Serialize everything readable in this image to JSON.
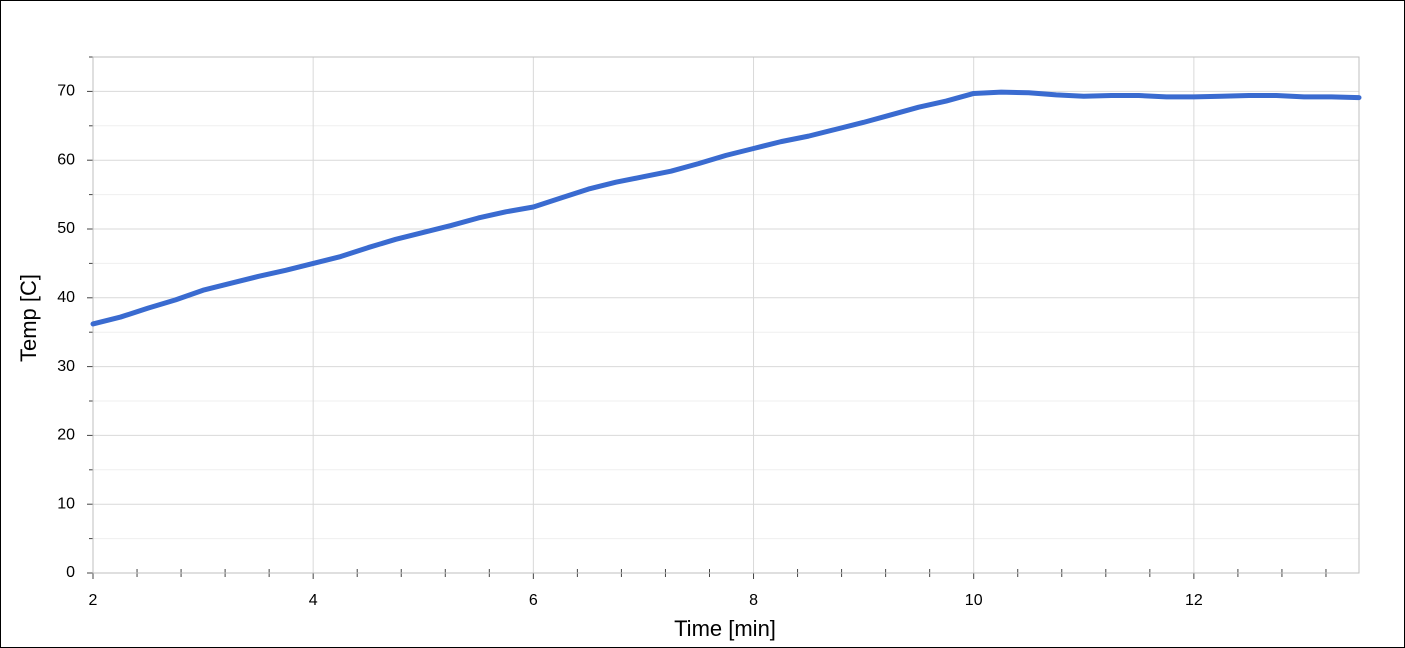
{
  "chart_data": {
    "type": "line",
    "xlabel": "Time [min]",
    "ylabel": "Temp [C]",
    "x": [
      2,
      2.25,
      2.5,
      2.75,
      3,
      3.25,
      3.5,
      3.75,
      4,
      4.25,
      4.5,
      4.75,
      5,
      5.25,
      5.5,
      5.75,
      6,
      6.25,
      6.5,
      6.75,
      7,
      7.25,
      7.5,
      7.75,
      8,
      8.25,
      8.5,
      8.75,
      9,
      9.25,
      9.5,
      9.75,
      10,
      10.25,
      10.5,
      10.75,
      11,
      11.25,
      11.5,
      11.75,
      12,
      12.25,
      12.5,
      12.75,
      13,
      13.25,
      13.5
    ],
    "series": [
      {
        "color": "#3a6bd0",
        "values": [
          36.2,
          37.2,
          38.5,
          39.7,
          41.1,
          42.1,
          43.1,
          44.0,
          45.0,
          46.0,
          47.3,
          48.5,
          49.5,
          50.5,
          51.6,
          52.5,
          53.2,
          54.5,
          55.8,
          56.8,
          57.6,
          58.4,
          59.5,
          60.7,
          61.7,
          62.7,
          63.5,
          64.5,
          65.5,
          66.6,
          67.7,
          68.6,
          69.7,
          69.9,
          69.8,
          69.5,
          69.3,
          69.4,
          69.4,
          69.2,
          69.2,
          69.3,
          69.4,
          69.4,
          69.2,
          69.2,
          69.1
        ]
      }
    ],
    "xlim": [
      2,
      13.5
    ],
    "xticks": [
      2,
      4,
      6,
      8,
      10,
      12
    ],
    "xminorticks": [
      2.4,
      2.8,
      3.2,
      3.6,
      4.4,
      4.8,
      5.2,
      5.6,
      6.4,
      6.8,
      7.2,
      7.6,
      8.4,
      8.8,
      9.2,
      9.6,
      10.4,
      10.8,
      11.2,
      11.6,
      12.4,
      12.8,
      13.2
    ],
    "ylim": [
      0,
      75
    ],
    "yticks": [
      0,
      10,
      20,
      30,
      40,
      50,
      60,
      70
    ],
    "yminorticks": [
      5,
      15,
      25,
      35,
      45,
      55,
      65,
      75
    ],
    "grid": true
  }
}
